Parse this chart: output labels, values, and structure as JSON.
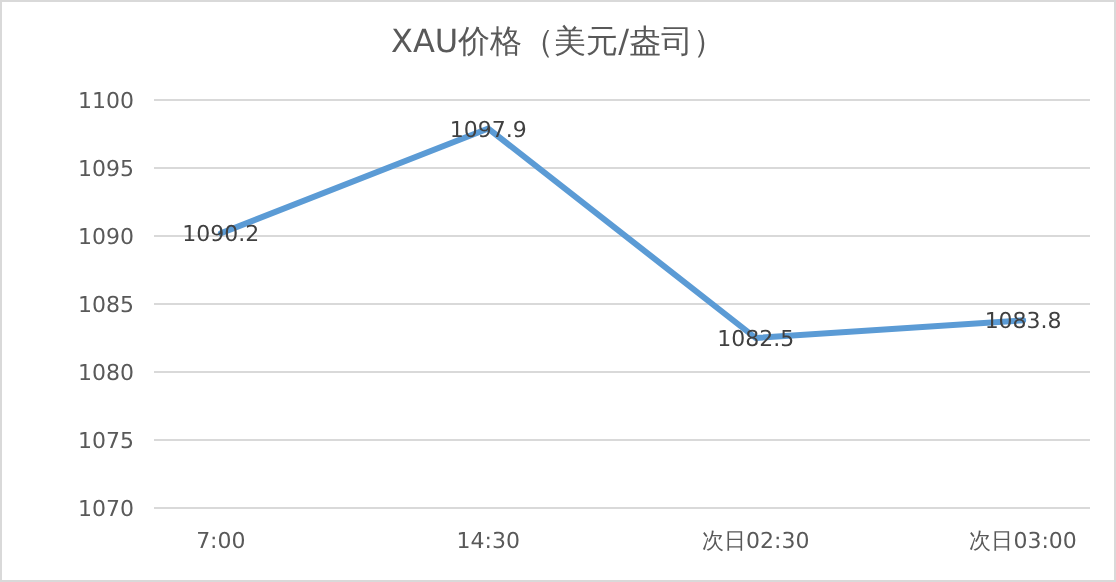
{
  "chart_data": {
    "type": "line",
    "title": "XAU价格（美元/盎司）",
    "categories": [
      "7:00",
      "14:30",
      "次日02:30",
      "次日03:00"
    ],
    "series": [
      {
        "color": "#5b9bd5",
        "values": [
          1090.2,
          1097.9,
          1082.5,
          1083.8
        ]
      }
    ],
    "ylim": [
      1070,
      1100
    ],
    "yticks": [
      1070,
      1075,
      1080,
      1085,
      1090,
      1095,
      1100
    ],
    "grid": "y",
    "data_labels": true,
    "marker": "none",
    "line_style": "solid"
  }
}
